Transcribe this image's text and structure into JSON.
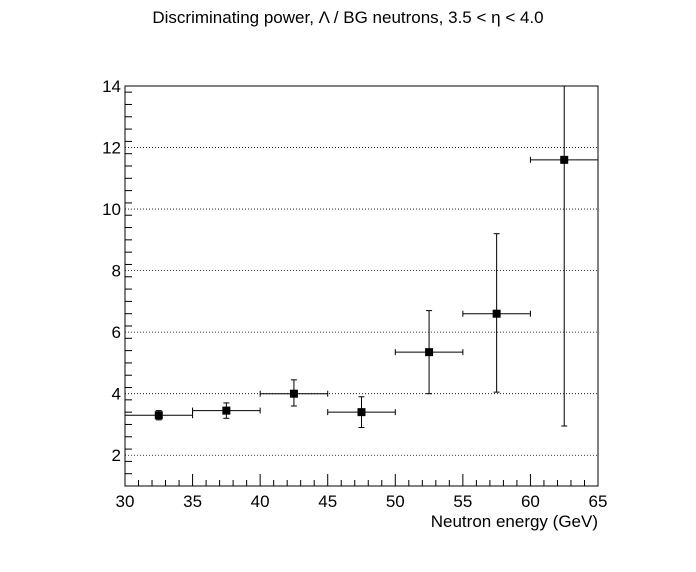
{
  "chart_data": {
    "type": "scatter",
    "title": "Discriminating power, Λ / BG neutrons, 3.5 < η < 4.0",
    "xlabel": "Neutron energy (GeV)",
    "ylabel": "",
    "xlim": [
      30,
      65
    ],
    "ylim": [
      1,
      14
    ],
    "x_ticks": [
      30,
      35,
      40,
      45,
      50,
      55,
      60,
      65
    ],
    "y_ticks": [
      2,
      4,
      6,
      8,
      10,
      12,
      14
    ],
    "grid": "horizontal dotted",
    "legend": "none",
    "marker_color": "#000000",
    "series": [
      {
        "points": [
          {
            "x": 32.5,
            "x_low": 30,
            "x_high": 35,
            "y": 3.3,
            "y_low": 3.15,
            "y_high": 3.45
          },
          {
            "x": 37.5,
            "x_low": 35,
            "x_high": 40,
            "y": 3.45,
            "y_low": 3.2,
            "y_high": 3.7
          },
          {
            "x": 42.5,
            "x_low": 40,
            "x_high": 45,
            "y": 4.0,
            "y_low": 3.6,
            "y_high": 4.45
          },
          {
            "x": 47.5,
            "x_low": 45,
            "x_high": 50,
            "y": 3.4,
            "y_low": 2.9,
            "y_high": 3.9
          },
          {
            "x": 52.5,
            "x_low": 50,
            "x_high": 55,
            "y": 5.35,
            "y_low": 4.0,
            "y_high": 6.7
          },
          {
            "x": 57.5,
            "x_low": 55,
            "x_high": 60,
            "y": 6.6,
            "y_low": 4.05,
            "y_high": 9.2
          },
          {
            "x": 62.5,
            "x_low": 60,
            "x_high": 65,
            "y": 11.6,
            "y_low": 2.95,
            "y_high": 14.0
          }
        ]
      }
    ]
  }
}
